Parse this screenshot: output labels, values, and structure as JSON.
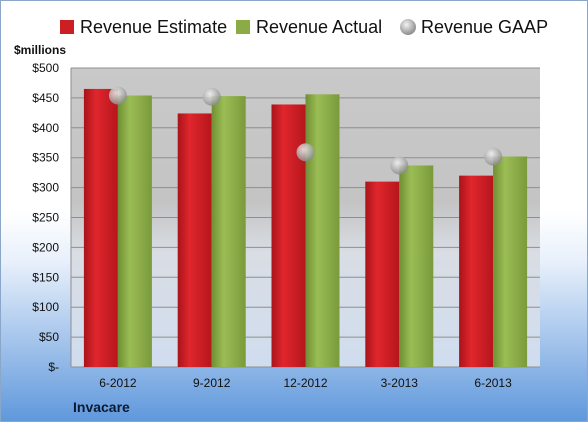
{
  "chart_data": {
    "type": "bar",
    "ylabel": "$millions",
    "company": "Invacare",
    "categories": [
      "6-2012",
      "9-2012",
      "12-2012",
      "3-2013",
      "6-2013"
    ],
    "series": [
      {
        "name": "Revenue Estimate",
        "kind": "bar",
        "color": "#cc1f24",
        "values": [
          465,
          424,
          439,
          310,
          320
        ]
      },
      {
        "name": "Revenue Actual",
        "kind": "bar",
        "color": "#8aab45",
        "values": [
          454,
          453,
          456,
          337,
          352
        ]
      },
      {
        "name": "Revenue GAAP",
        "kind": "marker",
        "color": "#a9a9a9",
        "values": [
          454,
          452,
          359,
          337,
          352
        ]
      }
    ],
    "ylim": [
      0,
      500
    ],
    "yticks": [
      0,
      50,
      100,
      150,
      200,
      250,
      300,
      350,
      400,
      450,
      500
    ],
    "ytick_labels": [
      "$-",
      "$50",
      "$100",
      "$150",
      "$200",
      "$250",
      "$300",
      "$350",
      "$400",
      "$450",
      "$500"
    ],
    "grid": true,
    "legend_position": "top"
  }
}
